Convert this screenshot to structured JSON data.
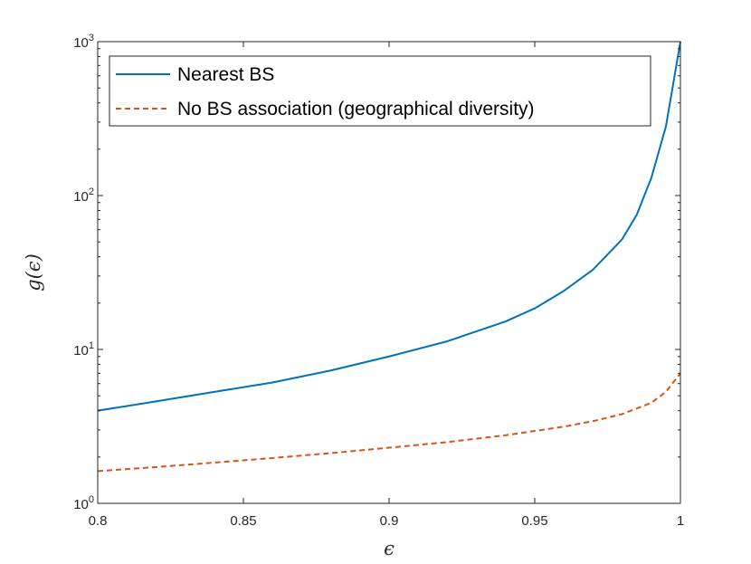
{
  "chart_data": {
    "type": "line",
    "xlabel": "ϵ",
    "ylabel": "g(ϵ)",
    "xlim": [
      0.8,
      1.0
    ],
    "ylim": [
      1,
      1000
    ],
    "yscale": "log",
    "grid": false,
    "legend_position": "top-left",
    "x_ticks": [
      "0.8",
      "0.85",
      "0.9",
      "0.95",
      "1"
    ],
    "y_ticks": [
      {
        "base": "10",
        "exp": "0"
      },
      {
        "base": "10",
        "exp": "1"
      },
      {
        "base": "10",
        "exp": "2"
      },
      {
        "base": "10",
        "exp": "3"
      }
    ],
    "series": [
      {
        "name": "Nearest BS",
        "color": "#0072bd",
        "style": "solid",
        "x": [
          0.8,
          0.82,
          0.84,
          0.86,
          0.88,
          0.9,
          0.92,
          0.94,
          0.95,
          0.96,
          0.97,
          0.98,
          0.985,
          0.99,
          0.995,
          0.998,
          1.0
        ],
        "y": [
          4.0,
          4.6,
          5.3,
          6.1,
          7.3,
          9.0,
          11.3,
          15.2,
          18.5,
          24,
          33,
          52,
          75,
          130,
          280,
          600,
          1000
        ]
      },
      {
        "name": "No BS association (geographical diversity)",
        "color": "#d95319",
        "style": "dashed",
        "x": [
          0.8,
          0.82,
          0.84,
          0.86,
          0.88,
          0.9,
          0.92,
          0.94,
          0.96,
          0.97,
          0.98,
          0.99,
          0.995,
          1.0
        ],
        "y": [
          1.62,
          1.72,
          1.84,
          1.97,
          2.12,
          2.3,
          2.5,
          2.77,
          3.15,
          3.42,
          3.8,
          4.5,
          5.3,
          7.0
        ]
      }
    ]
  }
}
